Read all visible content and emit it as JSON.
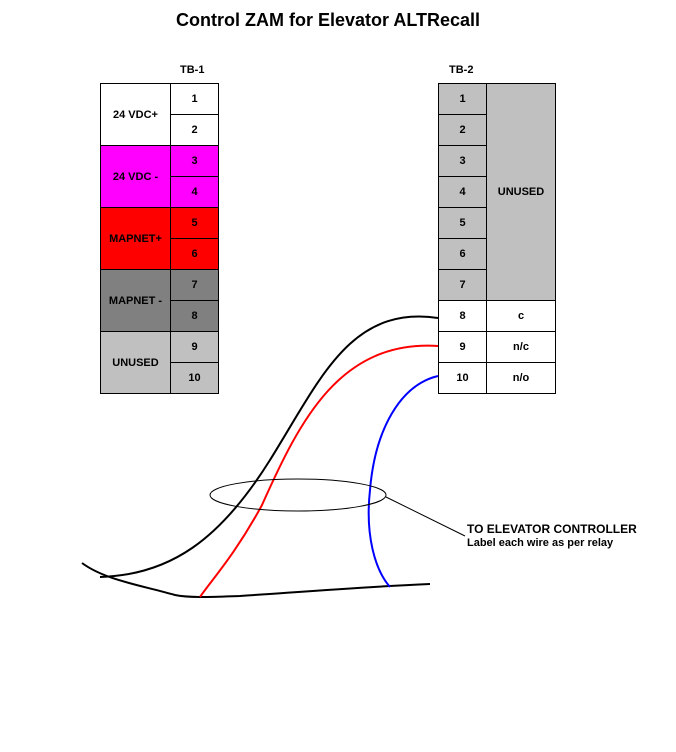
{
  "title": "Control ZAM for Elevator ALTRecall",
  "tb1": {
    "title": "TB-1",
    "groups": [
      {
        "label": "24 VDC+",
        "color": "#ffffff",
        "terminals": [
          "1",
          "2"
        ]
      },
      {
        "label": "24 VDC -",
        "color": "#ff00ff",
        "terminals": [
          "3",
          "4"
        ]
      },
      {
        "label": "MAPNET+",
        "color": "#ff0000",
        "terminals": [
          "5",
          "6"
        ]
      },
      {
        "label": "MAPNET -",
        "color": "#808080",
        "terminals": [
          "7",
          "8"
        ]
      },
      {
        "label": "UNUSED",
        "color": "#c0c0c0",
        "terminals": [
          "9",
          "10"
        ]
      }
    ]
  },
  "tb2": {
    "title": "TB-2",
    "unused_label": "UNUSED",
    "unused_color": "#c0c0c0",
    "unused_terminals": [
      "1",
      "2",
      "3",
      "4",
      "5",
      "6",
      "7"
    ],
    "relay_terminals": [
      {
        "terminal": "8",
        "label": "c",
        "wire_color": "#000000"
      },
      {
        "terminal": "9",
        "label": "n/c",
        "wire_color": "#ff0000"
      },
      {
        "terminal": "10",
        "label": "n/o",
        "wire_color": "#0000ff"
      }
    ]
  },
  "note": {
    "line1": "TO ELEVATOR CONTROLLER",
    "line2": "Label each wire as per relay"
  }
}
